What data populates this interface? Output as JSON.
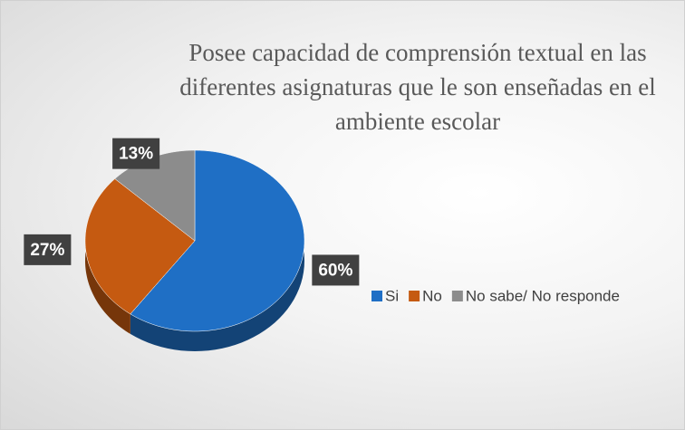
{
  "chart_data": {
    "type": "pie",
    "title": "Posee capacidad de comprensión textual en las diferentes asignaturas  que le son enseñadas en el ambiente escolar",
    "categories": [
      "Si",
      "No",
      "No sabe/ No responde"
    ],
    "values": [
      60,
      27,
      13
    ],
    "value_labels": [
      "60%",
      "27%",
      "13%"
    ],
    "colors": [
      "#1f6fc5",
      "#c55a11",
      "#8c8c8c"
    ],
    "legend": "right"
  }
}
